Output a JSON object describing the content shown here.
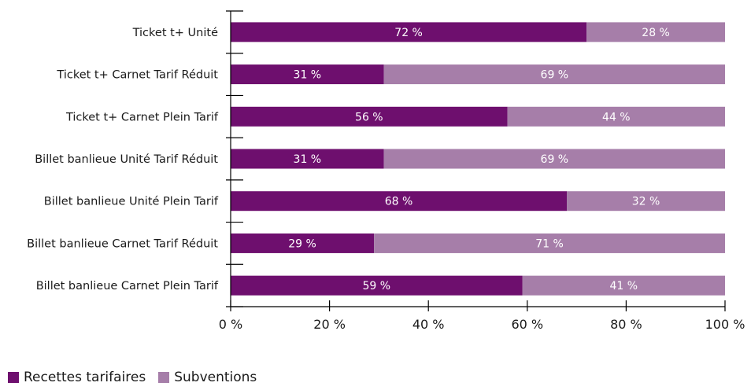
{
  "chart_data": {
    "type": "bar",
    "orientation": "horizontal",
    "stacked": true,
    "categories": [
      "Ticket t+ Unité",
      "Ticket t+ Carnet Tarif Réduit",
      "Ticket t+ Carnet Plein Tarif",
      "Billet banlieue Unité Tarif Réduit",
      "Billet banlieue Unité Plein Tarif",
      "Billet banlieue Carnet Tarif Réduit",
      "Billet banlieue Carnet Plein Tarif"
    ],
    "series": [
      {
        "name": "Recettes tarifaires",
        "color": "#6e0f6e",
        "values": [
          72,
          31,
          56,
          31,
          68,
          29,
          59
        ],
        "labels": [
          "72 %",
          "31 %",
          "56 %",
          "31 %",
          "68 %",
          "29 %",
          "59 %"
        ]
      },
      {
        "name": "Subventions",
        "color": "#a67ea9",
        "values": [
          28,
          69,
          44,
          69,
          32,
          71,
          41
        ],
        "labels": [
          "28 %",
          "69 %",
          "44 %",
          "69 %",
          "32 %",
          "71 %",
          "41 %"
        ]
      }
    ],
    "xlim": [
      0,
      100
    ],
    "xticks": [
      0,
      20,
      40,
      60,
      80,
      100
    ],
    "xtick_labels": [
      "0 %",
      "20 %",
      "40 %",
      "60 %",
      "80 %",
      "100 %"
    ],
    "grid": false,
    "legend_position": "bottom-left"
  }
}
